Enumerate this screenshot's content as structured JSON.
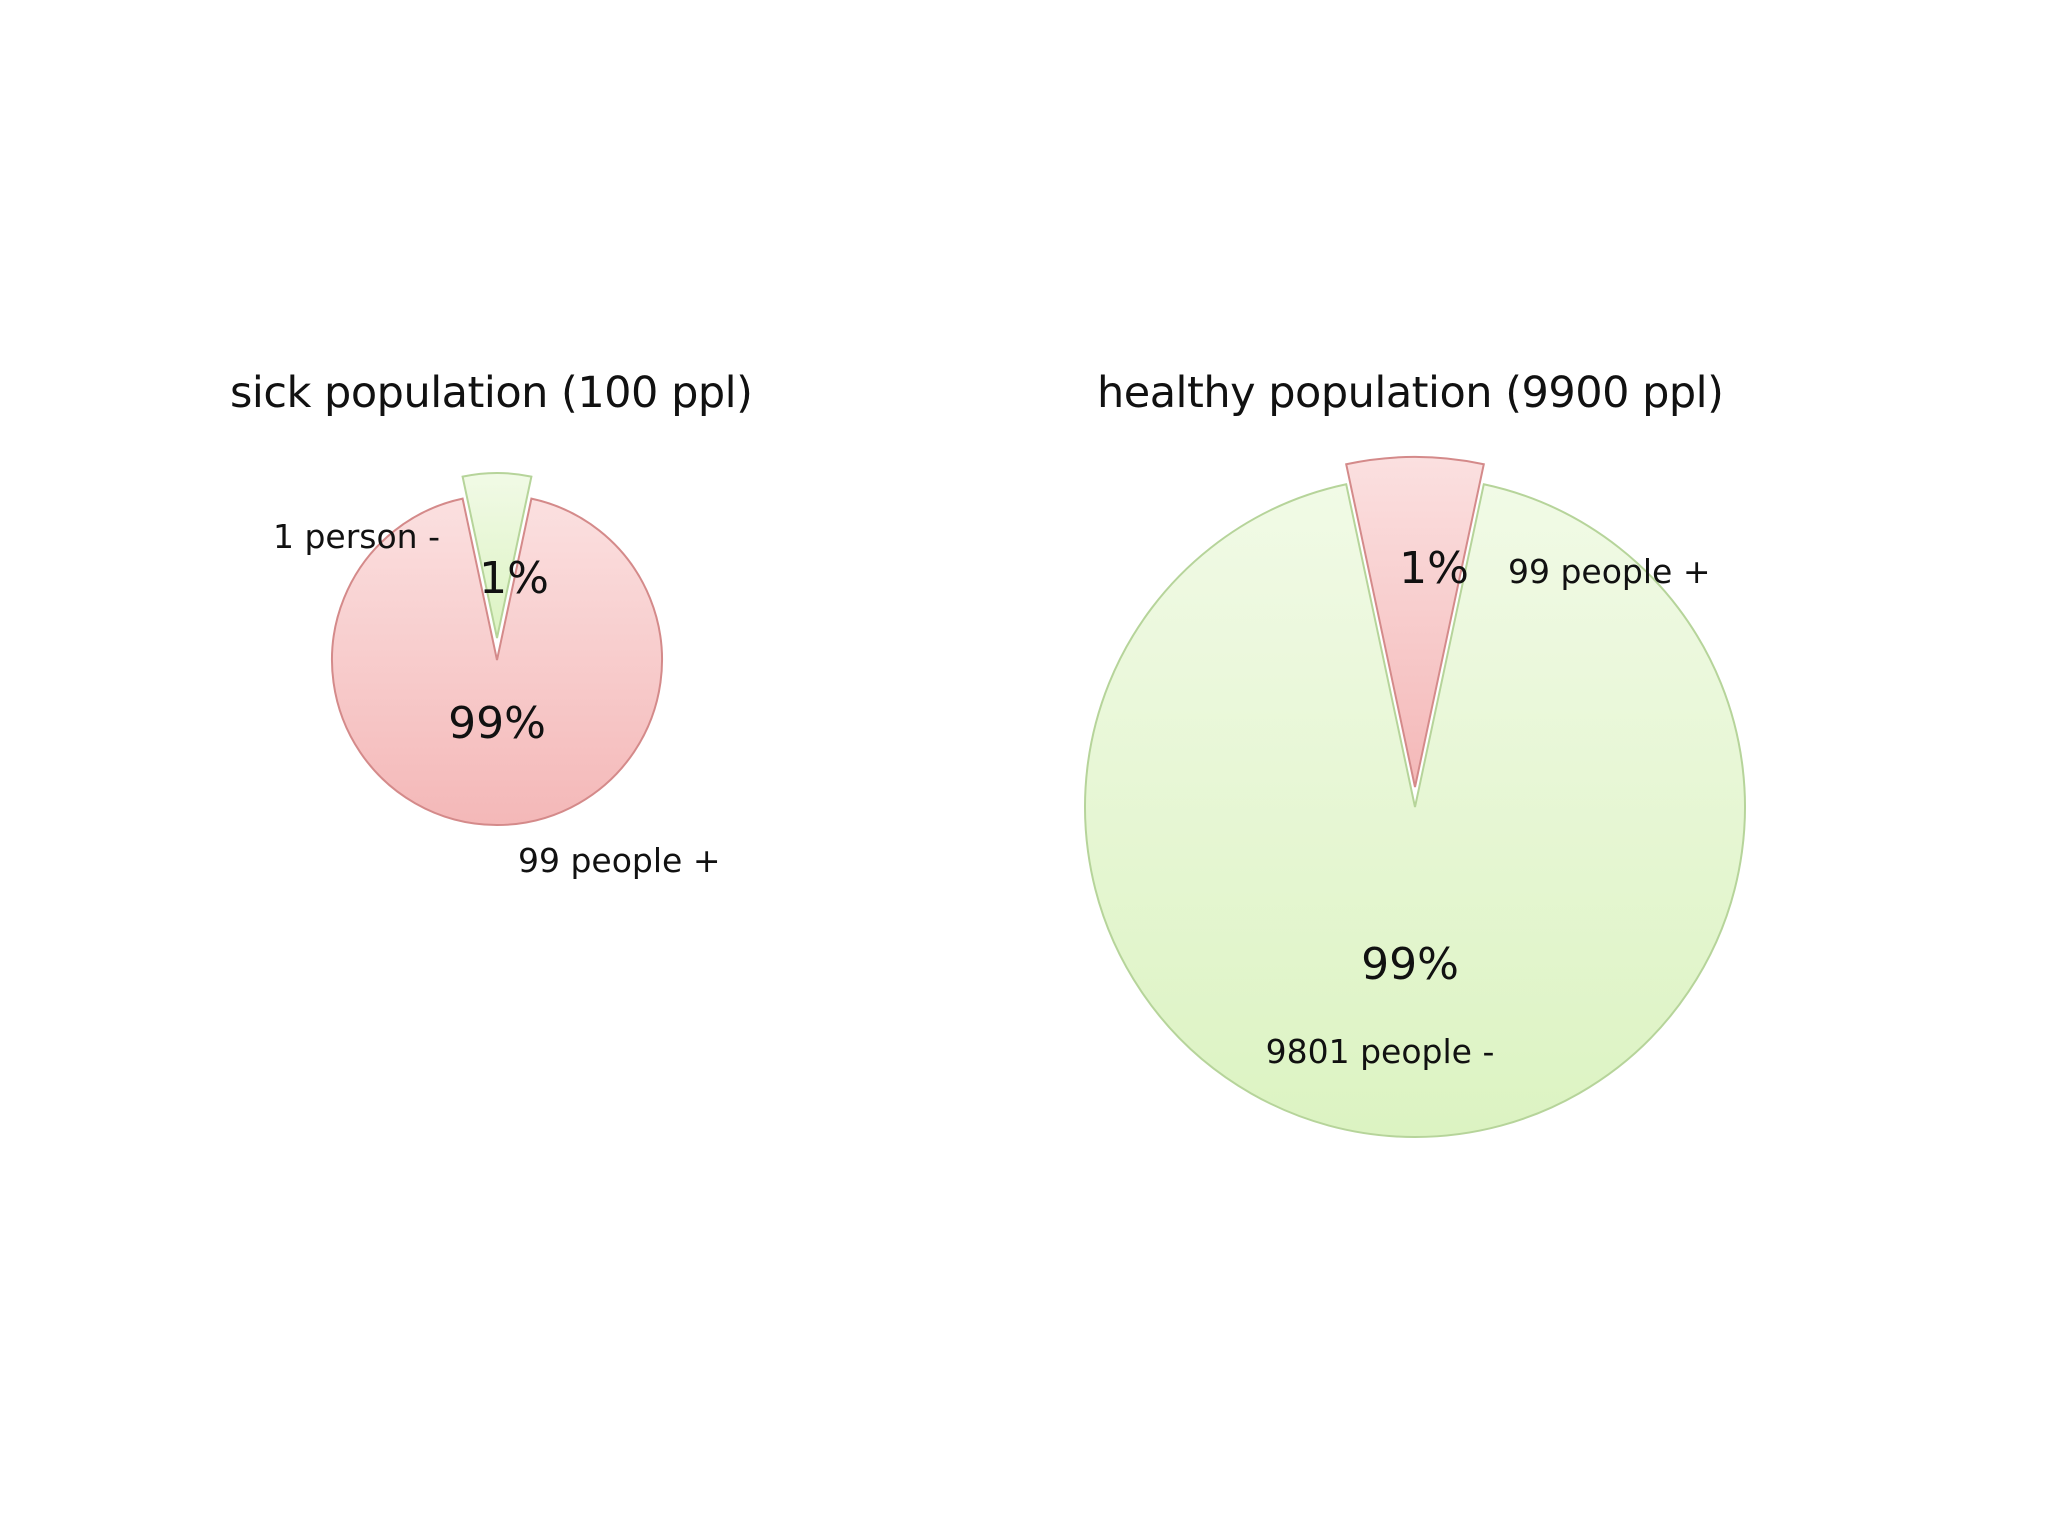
{
  "chart_data": [
    {
      "type": "pie",
      "title": "sick population (100 ppl)",
      "total": 100,
      "slices": [
        {
          "name": "positive",
          "value": 99,
          "percent_label": "99%",
          "annotation": "99 people +",
          "color": "#f7c9c9"
        },
        {
          "name": "negative",
          "value": 1,
          "percent_label": "1%",
          "annotation": "1 person -",
          "color": "#e4f6cf",
          "exploded": true
        }
      ]
    },
    {
      "type": "pie",
      "title": "healthy population (9900 ppl)",
      "total": 9900,
      "slices": [
        {
          "name": "negative",
          "value": 9801,
          "percent_label": "99%",
          "annotation": "9801 people -",
          "color": "#e4f6cf"
        },
        {
          "name": "positive",
          "value": 99,
          "percent_label": "1%",
          "annotation": "99 people +",
          "color": "#f7c9c9",
          "exploded": true
        }
      ]
    }
  ],
  "colors": {
    "positive_fill": "#f7c9c9",
    "positive_stroke": "#d48a8a",
    "negative_fill": "#e4f6cf",
    "negative_stroke": "#b6d49a"
  }
}
